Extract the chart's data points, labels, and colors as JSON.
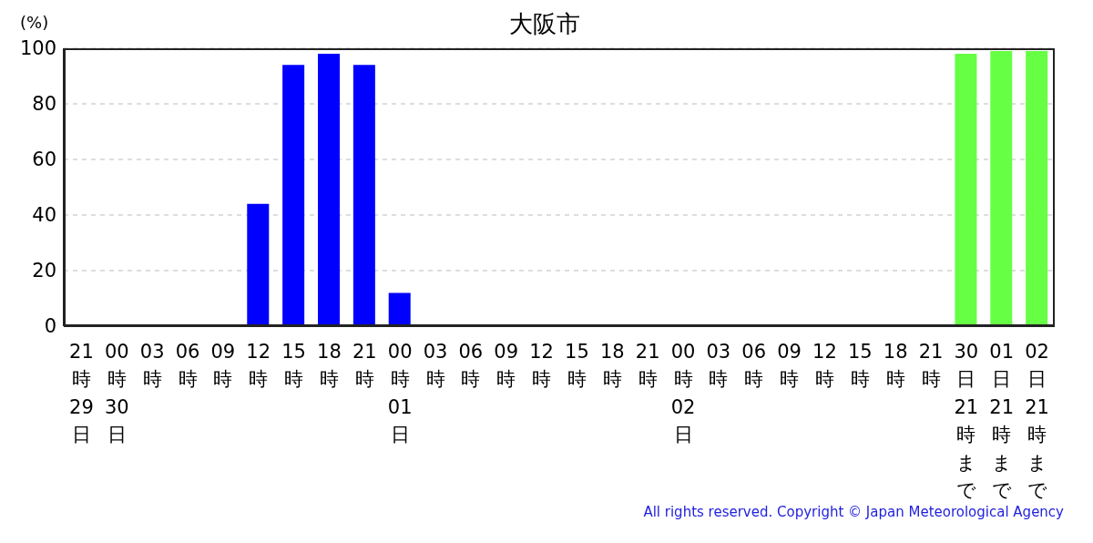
{
  "chart_data": {
    "type": "bar",
    "title": "大阪市",
    "ylabel": "(%)",
    "categories": [
      "21時29日",
      "00時30日",
      "03時",
      "06時",
      "09時",
      "12時",
      "15時",
      "18時",
      "21時",
      "00時01日",
      "03時",
      "06時",
      "09時",
      "12時",
      "15時",
      "18時",
      "21時",
      "00時02日",
      "03時",
      "06時",
      "09時",
      "12時",
      "15時",
      "18時",
      "21時",
      "30日21時まで",
      "01日21時まで",
      "02日21時まで"
    ],
    "values": [
      null,
      null,
      null,
      null,
      null,
      44,
      94,
      98,
      94,
      12,
      null,
      null,
      null,
      null,
      null,
      null,
      null,
      null,
      null,
      null,
      null,
      null,
      null,
      null,
      null,
      98,
      99,
      99
    ],
    "colors": [
      "#0000ff",
      "#0000ff",
      "#0000ff",
      "#0000ff",
      "#0000ff",
      "#0000ff",
      "#0000ff",
      "#0000ff",
      "#0000ff",
      "#0000ff",
      "#0000ff",
      "#0000ff",
      "#0000ff",
      "#0000ff",
      "#0000ff",
      "#0000ff",
      "#0000ff",
      "#0000ff",
      "#0000ff",
      "#0000ff",
      "#0000ff",
      "#0000ff",
      "#0000ff",
      "#0000ff",
      "#0000ff",
      "#66ff44",
      "#66ff44",
      "#66ff44"
    ],
    "ylim": [
      0,
      100
    ],
    "yticks": [
      0,
      20,
      40,
      60,
      80,
      100
    ],
    "grid": "y",
    "legend": false,
    "annotations": [
      "All rights reserved. Copyright © Japan Meteorological Agency"
    ]
  }
}
